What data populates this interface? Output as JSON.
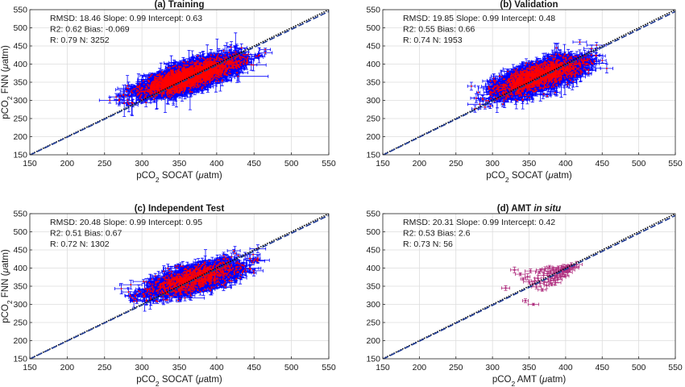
{
  "chart_data": [
    {
      "type": "scatter",
      "title": "(a) Training",
      "title_italic": "",
      "xlabel": "pCO2 SOCAT (μatm)",
      "ylabel": "pCO2 FNN (μatm)",
      "xlim": [
        150,
        550
      ],
      "ylim": [
        150,
        550
      ],
      "xticks": [
        150,
        200,
        250,
        300,
        350,
        400,
        450,
        500,
        550
      ],
      "yticks": [
        150,
        200,
        250,
        300,
        350,
        400,
        450,
        500,
        550
      ],
      "grid": true,
      "stats": [
        "RMSD: 18.46  Slope: 0.99  Intercept: 0.63",
        "R2: 0.62  Bias: -0.069",
        "R: 0.79 N: 3252"
      ],
      "fit": {
        "slope": 0.99,
        "intercept": 0.63
      },
      "cloud": {
        "x_center": 365,
        "x_spread": 30,
        "y_center": 366,
        "y_spread": 24,
        "corr": 0.79,
        "n_points": 3252,
        "x_range": [
          240,
          465
        ],
        "y_range": [
          245,
          470
        ]
      },
      "series": [
        {
          "name": "",
          "role": "1:1 line",
          "color": "#000000",
          "dash": "dotted"
        },
        {
          "name": "",
          "role": "fit line",
          "color": "#1f3a93",
          "dash": "dashed"
        },
        {
          "name": "",
          "role": "data points",
          "color": "#ff0000"
        },
        {
          "name": "",
          "role": "error bars",
          "color": "#0000ff"
        }
      ]
    },
    {
      "type": "scatter",
      "title": "(b) Validation",
      "title_italic": "",
      "xlabel": "pCO2 SOCAT (μatm)",
      "ylabel": "",
      "xlim": [
        150,
        550
      ],
      "ylim": [
        150,
        550
      ],
      "xticks": [
        150,
        200,
        250,
        300,
        350,
        400,
        450,
        500,
        550
      ],
      "yticks": [
        150,
        200,
        250,
        300,
        350,
        400,
        450,
        500,
        550
      ],
      "grid": true,
      "stats": [
        "RMSD: 19.85  Slope: 0.99  Intercept: 0.48",
        "R2: 0.55  Bias: 0.66",
        "R: 0.74 N: 1953"
      ],
      "fit": {
        "slope": 0.99,
        "intercept": 0.48
      },
      "cloud": {
        "x_center": 363,
        "x_spread": 30,
        "y_center": 366,
        "y_spread": 25,
        "corr": 0.74,
        "n_points": 1953,
        "x_range": [
          255,
          470
        ],
        "y_range": [
          210,
          550
        ]
      },
      "series": [
        {
          "name": "",
          "role": "1:1 line",
          "color": "#000000",
          "dash": "dotted"
        },
        {
          "name": "",
          "role": "fit line",
          "color": "#1f3a93",
          "dash": "dashed"
        },
        {
          "name": "",
          "role": "data points",
          "color": "#ff0000"
        },
        {
          "name": "",
          "role": "error bars",
          "color": "#0000ff"
        }
      ]
    },
    {
      "type": "scatter",
      "title": "(c) Independent Test",
      "title_italic": "",
      "xlabel": "pCO2 SOCAT (μatm)",
      "ylabel": "pCO2 FNN (μatm)",
      "xlim": [
        150,
        550
      ],
      "ylim": [
        150,
        550
      ],
      "xticks": [
        150,
        200,
        250,
        300,
        350,
        400,
        450,
        500,
        550
      ],
      "yticks": [
        150,
        200,
        250,
        300,
        350,
        400,
        450,
        500,
        550
      ],
      "grid": true,
      "stats": [
        "RMSD: 20.48  Slope: 0.99  Intercept: 0.95",
        "R2: 0.51  Bias: 0.67",
        "R: 0.72 N: 1302"
      ],
      "fit": {
        "slope": 0.99,
        "intercept": 0.95
      },
      "cloud": {
        "x_center": 370,
        "x_spread": 30,
        "y_center": 370,
        "y_spread": 24,
        "corr": 0.72,
        "n_points": 1302,
        "x_range": [
          260,
          455
        ],
        "y_range": [
          250,
          460
        ]
      },
      "series": [
        {
          "name": "",
          "role": "1:1 line",
          "color": "#000000",
          "dash": "dotted"
        },
        {
          "name": "",
          "role": "fit line",
          "color": "#1f3a93",
          "dash": "dashed"
        },
        {
          "name": "",
          "role": "data points",
          "color": "#ff0000"
        },
        {
          "name": "",
          "role": "error bars",
          "color": "#0000ff"
        }
      ]
    },
    {
      "type": "scatter",
      "title": "(d) AMT ",
      "title_italic": "in situ",
      "xlabel": "pCO2 AMT (μatm)",
      "ylabel": "",
      "xlim": [
        150,
        550
      ],
      "ylim": [
        150,
        550
      ],
      "xticks": [
        150,
        200,
        250,
        300,
        350,
        400,
        450,
        500,
        550
      ],
      "yticks": [
        150,
        200,
        250,
        300,
        350,
        400,
        450,
        500,
        550
      ],
      "grid": true,
      "stats": [
        "RMSD: 20.31  Slope: 0.99  Intercept: 0.42",
        "R2: 0.53  Bias: 2.6",
        "R: 0.73 N: 56"
      ],
      "fit": {
        "slope": 0.99,
        "intercept": 0.42
      },
      "points": [
        [
          318,
          345
        ],
        [
          330,
          395
        ],
        [
          338,
          383
        ],
        [
          342,
          370
        ],
        [
          345,
          310
        ],
        [
          348,
          376
        ],
        [
          350,
          362
        ],
        [
          352,
          392
        ],
        [
          355,
          356
        ],
        [
          356,
          300
        ],
        [
          358,
          365
        ],
        [
          360,
          348
        ],
        [
          362,
          372
        ],
        [
          364,
          388
        ],
        [
          365,
          358
        ],
        [
          366,
          395
        ],
        [
          368,
          340
        ],
        [
          370,
          380
        ],
        [
          371,
          362
        ],
        [
          372,
          398
        ],
        [
          374,
          352
        ],
        [
          375,
          385
        ],
        [
          376,
          370
        ],
        [
          378,
          403
        ],
        [
          379,
          392
        ],
        [
          380,
          366
        ],
        [
          381,
          355
        ],
        [
          382,
          378
        ],
        [
          383,
          398
        ],
        [
          384,
          388
        ],
        [
          385,
          372
        ],
        [
          386,
          360
        ],
        [
          387,
          395
        ],
        [
          388,
          380
        ],
        [
          389,
          368
        ],
        [
          390,
          402
        ],
        [
          391,
          392
        ],
        [
          392,
          385
        ],
        [
          393,
          375
        ],
        [
          394,
          398
        ],
        [
          395,
          390
        ],
        [
          396,
          383
        ],
        [
          397,
          402
        ],
        [
          398,
          395
        ],
        [
          399,
          378
        ],
        [
          400,
          400
        ],
        [
          401,
          392
        ],
        [
          402,
          405
        ],
        [
          403,
          388
        ],
        [
          404,
          398
        ],
        [
          405,
          402
        ],
        [
          406,
          395
        ],
        [
          408,
          408
        ],
        [
          410,
          400
        ],
        [
          412,
          405
        ],
        [
          415,
          410
        ]
      ],
      "series": [
        {
          "name": "",
          "role": "1:1 line",
          "color": "#000000",
          "dash": "dotted"
        },
        {
          "name": "",
          "role": "fit line",
          "color": "#1f3a93",
          "dash": "dashed"
        },
        {
          "name": "",
          "role": "data points",
          "color": "#b03080"
        },
        {
          "name": "",
          "role": "error bars",
          "color": "#b03080"
        }
      ]
    }
  ]
}
